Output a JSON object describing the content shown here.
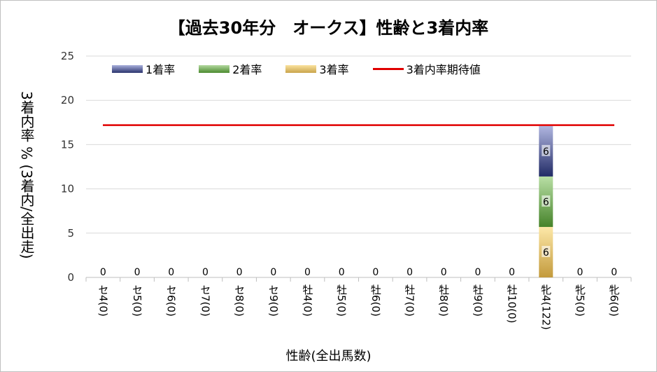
{
  "chart_data": {
    "type": "bar",
    "title": "【過去30年分　オークス】性齢と3着内率",
    "xlabel": "性齢(全出馬数)",
    "ylabel": "3着内率 %  (3着内/全出走)",
    "ylim": [
      0,
      25
    ],
    "yticks": [
      "0",
      "5",
      "10",
      "15",
      "20",
      "25"
    ],
    "grid": true,
    "legend_position": "top",
    "categories": [
      "セ4(0)",
      "セ5(0)",
      "セ6(0)",
      "セ7(0)",
      "セ8(0)",
      "セ9(0)",
      "牡4(0)",
      "牡5(0)",
      "牡6(0)",
      "牡7(0)",
      "牡8(0)",
      "牡9(0)",
      "牡10(0)",
      "牝4(122)",
      "牝5(0)",
      "牝6(0)"
    ],
    "series": [
      {
        "name": "3着率",
        "color": "#c9a44a",
        "values": [
          0,
          0,
          0,
          0,
          0,
          0,
          0,
          0,
          0,
          0,
          0,
          0,
          0,
          5.7,
          0,
          0
        ]
      },
      {
        "name": "2着率",
        "color": "#70a850",
        "values": [
          0,
          0,
          0,
          0,
          0,
          0,
          0,
          0,
          0,
          0,
          0,
          0,
          0,
          5.7,
          0,
          0
        ]
      },
      {
        "name": "1着率",
        "color": "#5a67a8",
        "values": [
          0,
          0,
          0,
          0,
          0,
          0,
          0,
          0,
          0,
          0,
          0,
          0,
          0,
          5.7,
          0,
          0
        ]
      }
    ],
    "data_labels": [
      "0",
      "0",
      "0",
      "0",
      "0",
      "0",
      "0",
      "0",
      "0",
      "0",
      "0",
      "0",
      "0",
      "6",
      "0",
      "0"
    ],
    "bar_labels": [
      "6",
      "6",
      "6"
    ],
    "reference_line": {
      "name": "3着内率期待値",
      "color": "#e00000",
      "value": 17.2
    }
  }
}
